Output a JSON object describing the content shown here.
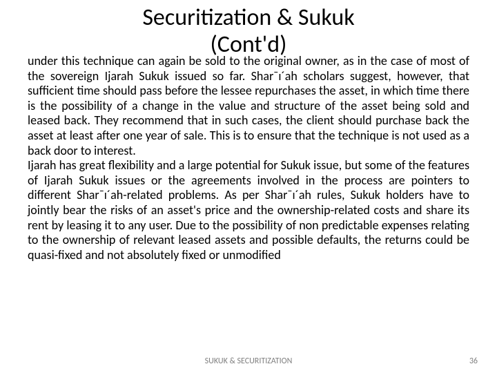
{
  "slide": {
    "title_line1": "Securitization & Sukuk",
    "title_line2": "(Cont'd)",
    "paragraph1": "under this technique can again be sold to the original owner, as in the case of most of the sovereign Ijarah Sukuk issued so far. Shar¯ı´ah scholars suggest, however, that sufficient time should pass before the lessee repurchases the asset, in which time there is the possibility of a change in the value and structure of the asset being sold and leased back. They recommend that in such cases, the client should purchase back the asset at least after one year of sale. This is to ensure that the technique is not used as a back door to interest.",
    "paragraph2": "Ijarah has great flexibility and a large potential for Sukuk issue, but some of the features of Ijarah Sukuk issues or the agreements involved in the process are pointers to different Shar¯ı´ah-related problems. As per Shar¯ı´ah rules, Sukuk holders have to jointly bear the risks of an asset's price and the ownership-related costs and share its rent by leasing it to any user. Due to the possibility of non predictable expenses relating to the ownership of relevant leased assets and possible defaults, the returns could be quasi-fixed and not absolutely fixed or unmodified",
    "footer_center": "SUKUK & SECURITIZATION",
    "page_number": "36"
  },
  "style": {
    "background_color": "#ffffff",
    "title_fontsize": 34,
    "title_color": "#000000",
    "body_fontsize": 18,
    "body_color": "#000000",
    "footer_fontsize": 12,
    "footer_color": "#7f7f7f",
    "font_family": "Calibri, Arial, sans-serif",
    "body_align": "justify"
  }
}
